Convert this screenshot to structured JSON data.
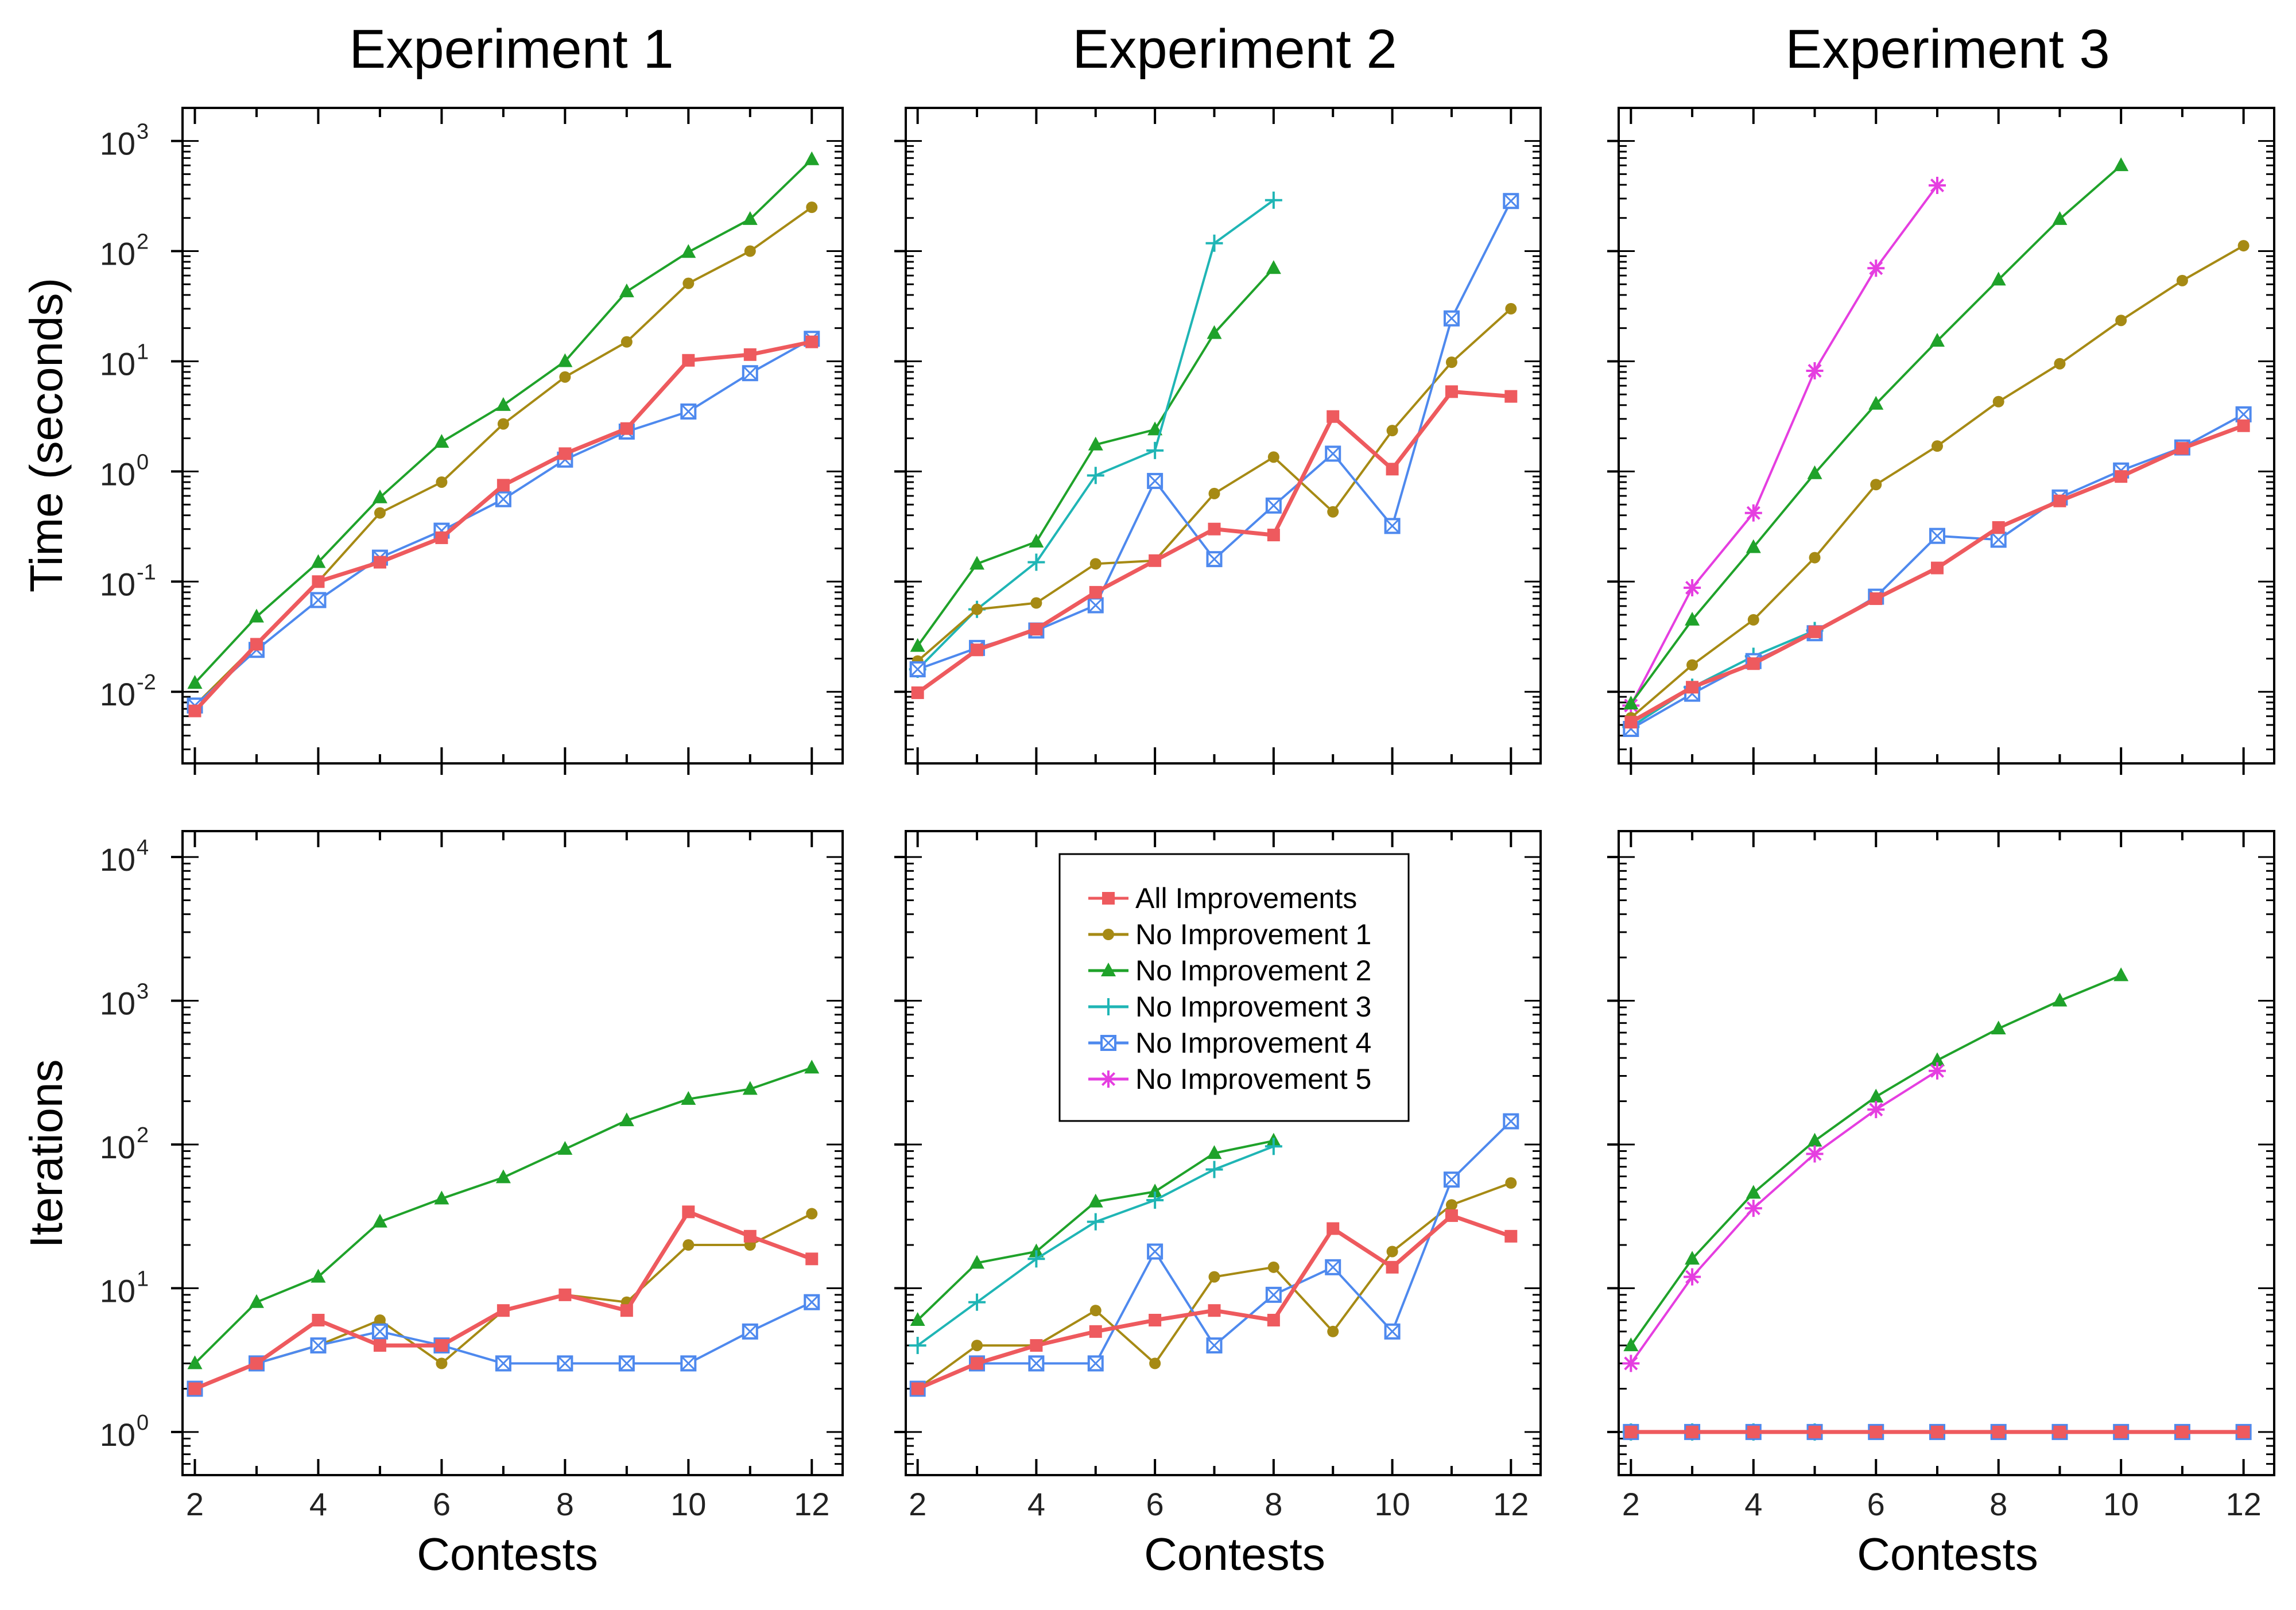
{
  "column_titles": [
    "Experiment 1",
    "Experiment 2",
    "Experiment 3"
  ],
  "row_labels": [
    "Time (seconds)",
    "Iterations"
  ],
  "x_label": "Contests",
  "x_ticks": [
    2,
    4,
    6,
    8,
    10,
    12
  ],
  "legend": {
    "location": "inside Experiment 2 iterations panel, top",
    "entries": [
      "All Improvements",
      "No Improvement 1",
      "No Improvement 2",
      "No Improvement 3",
      "No Improvement 4",
      "No Improvement 5"
    ]
  },
  "series_styles": [
    {
      "name": "All Improvements",
      "color": "#EE5A5E",
      "marker": "square"
    },
    {
      "name": "No Improvement 1",
      "color": "#A68A14",
      "marker": "circle"
    },
    {
      "name": "No Improvement 2",
      "color": "#1FA22A",
      "marker": "triangle"
    },
    {
      "name": "No Improvement 3",
      "color": "#1FB5B5",
      "marker": "plus"
    },
    {
      "name": "No Improvement 4",
      "color": "#4E89EE",
      "marker": "boxed-x"
    },
    {
      "name": "No Improvement 5",
      "color": "#E53EE0",
      "marker": "asterisk"
    }
  ],
  "chart_data": [
    {
      "type": "line",
      "title": "Experiment 1",
      "xlabel": "Contests",
      "ylabel": "Time (seconds)",
      "yscale": "log",
      "xlim": [
        1.8,
        12.5
      ],
      "ylim_log10": [
        -2.65,
        3.3
      ],
      "y_ticks": [
        {
          "base": "10",
          "exp": "-2"
        },
        {
          "base": "10",
          "exp": "-1"
        },
        {
          "base": "10",
          "exp": "0"
        },
        {
          "base": "10",
          "exp": "1"
        },
        {
          "base": "10",
          "exp": "2"
        },
        {
          "base": "10",
          "exp": "3"
        }
      ],
      "y_tick_values": [
        0.01,
        0.1,
        1,
        10,
        100,
        1000
      ],
      "series": [
        {
          "name": "No Improvement 2",
          "x": [
            2,
            3,
            4,
            5,
            6,
            7,
            8,
            9,
            10,
            11,
            12
          ],
          "values": [
            0.012,
            0.048,
            0.15,
            0.58,
            1.85,
            4.0,
            10,
            43,
            98,
            195,
            680
          ]
        },
        {
          "name": "No Improvement 1",
          "x": [
            2,
            3,
            4,
            5,
            6,
            7,
            8,
            9,
            10,
            11,
            12
          ],
          "values": [
            0.0075,
            0.027,
            0.1,
            0.42,
            0.8,
            2.7,
            7.2,
            15,
            51,
            100,
            250
          ]
        },
        {
          "name": "No Improvement 4",
          "x": [
            2,
            3,
            4,
            5,
            6,
            7,
            8,
            9,
            10,
            11,
            12
          ],
          "values": [
            0.0075,
            0.024,
            0.068,
            0.165,
            0.29,
            0.56,
            1.28,
            2.3,
            3.5,
            7.8,
            16
          ]
        },
        {
          "name": "All Improvements",
          "x": [
            2,
            3,
            4,
            5,
            6,
            7,
            8,
            9,
            10,
            11,
            12
          ],
          "values": [
            0.0067,
            0.027,
            0.1,
            0.15,
            0.25,
            0.75,
            1.45,
            2.45,
            10.2,
            11.5,
            15
          ]
        }
      ]
    },
    {
      "type": "line",
      "title": "Experiment 2",
      "xlabel": "Contests",
      "ylabel": "Time (seconds)",
      "yscale": "log",
      "xlim": [
        1.8,
        12.5
      ],
      "ylim_log10": [
        -2.65,
        3.3
      ],
      "y_tick_values": [
        0.01,
        0.1,
        1,
        10,
        100,
        1000
      ],
      "series": [
        {
          "name": "No Improvement 2",
          "x": [
            2,
            3,
            4,
            5,
            6,
            7,
            8
          ],
          "values": [
            0.026,
            0.145,
            0.23,
            1.75,
            2.4,
            18,
            70
          ]
        },
        {
          "name": "No Improvement 3",
          "x": [
            2,
            3,
            4,
            5,
            6,
            7,
            8
          ],
          "values": [
            0.016,
            0.056,
            0.15,
            0.92,
            1.55,
            118,
            290
          ]
        },
        {
          "name": "No Improvement 1",
          "x": [
            2,
            3,
            4,
            5,
            6,
            7,
            8,
            9,
            10,
            11,
            12
          ],
          "values": [
            0.019,
            0.056,
            0.064,
            0.145,
            0.155,
            0.63,
            1.35,
            0.43,
            2.35,
            9.8,
            30
          ]
        },
        {
          "name": "No Improvement 4",
          "x": [
            2,
            3,
            4,
            5,
            6,
            7,
            8,
            9,
            10,
            11,
            12
          ],
          "values": [
            0.016,
            0.025,
            0.036,
            0.061,
            0.82,
            0.16,
            0.49,
            1.45,
            0.32,
            24.5,
            285
          ]
        },
        {
          "name": "All Improvements",
          "x": [
            2,
            3,
            4,
            5,
            6,
            7,
            8,
            9,
            10,
            11,
            12
          ],
          "values": [
            0.0098,
            0.024,
            0.037,
            0.08,
            0.155,
            0.3,
            0.265,
            3.15,
            1.05,
            5.3,
            4.8
          ]
        }
      ]
    },
    {
      "type": "line",
      "title": "Experiment 3",
      "xlabel": "Contests",
      "ylabel": "Time (seconds)",
      "yscale": "log",
      "xlim": [
        1.8,
        12.5
      ],
      "ylim_log10": [
        -2.65,
        3.3
      ],
      "y_tick_values": [
        0.01,
        0.1,
        1,
        10,
        100,
        1000
      ],
      "series": [
        {
          "name": "No Improvement 5",
          "x": [
            2,
            3,
            4,
            5,
            6,
            7
          ],
          "values": [
            0.0075,
            0.088,
            0.42,
            8.2,
            70,
            395
          ]
        },
        {
          "name": "No Improvement 2",
          "x": [
            2,
            3,
            4,
            5,
            6,
            7,
            8,
            9,
            10
          ],
          "values": [
            0.0078,
            0.045,
            0.205,
            0.96,
            4.1,
            15.3,
            55,
            195,
            600
          ]
        },
        {
          "name": "No Improvement 1",
          "x": [
            2,
            3,
            4,
            5,
            6,
            7,
            8,
            9,
            10,
            11,
            12
          ],
          "values": [
            0.0058,
            0.0175,
            0.045,
            0.165,
            0.76,
            1.7,
            4.3,
            9.5,
            23.5,
            54,
            112
          ]
        },
        {
          "name": "No Improvement 3",
          "x": [
            2,
            3,
            4,
            5
          ],
          "values": [
            0.0048,
            0.011,
            0.021,
            0.036
          ]
        },
        {
          "name": "No Improvement 4",
          "x": [
            2,
            3,
            4,
            5,
            6,
            7,
            8,
            9,
            10,
            11,
            12
          ],
          "values": [
            0.0046,
            0.0096,
            0.019,
            0.034,
            0.073,
            0.26,
            0.24,
            0.58,
            1.02,
            1.65,
            3.3
          ]
        },
        {
          "name": "All Improvements",
          "x": [
            2,
            3,
            4,
            5,
            6,
            7,
            8,
            9,
            10,
            11,
            12
          ],
          "values": [
            0.0053,
            0.011,
            0.018,
            0.035,
            0.07,
            0.133,
            0.31,
            0.54,
            0.9,
            1.62,
            2.6
          ]
        }
      ]
    },
    {
      "type": "line",
      "title": "Experiment 1",
      "xlabel": "Contests",
      "ylabel": "Iterations",
      "yscale": "log",
      "xlim": [
        1.8,
        12.5
      ],
      "ylim_log10": [
        -0.3,
        4.18
      ],
      "y_ticks": [
        {
          "base": "10",
          "exp": "0"
        },
        {
          "base": "10",
          "exp": "1"
        },
        {
          "base": "10",
          "exp": "2"
        },
        {
          "base": "10",
          "exp": "3"
        },
        {
          "base": "10",
          "exp": "4"
        }
      ],
      "y_tick_values": [
        1,
        10,
        100,
        1000,
        10000
      ],
      "series": [
        {
          "name": "No Improvement 2",
          "x": [
            2,
            3,
            4,
            5,
            6,
            7,
            8,
            9,
            10,
            11,
            12
          ],
          "values": [
            3,
            8,
            12,
            29,
            42,
            59,
            93,
            147,
            207,
            243,
            342
          ]
        },
        {
          "name": "No Improvement 1",
          "x": [
            2,
            3,
            4,
            5,
            6,
            7,
            8,
            9,
            10,
            11,
            12
          ],
          "values": [
            2,
            3,
            4,
            6,
            3,
            7,
            9,
            8,
            20,
            20,
            33
          ]
        },
        {
          "name": "No Improvement 4",
          "x": [
            2,
            3,
            4,
            5,
            6,
            7,
            8,
            9,
            10,
            11,
            12
          ],
          "values": [
            2,
            3,
            4,
            5,
            4,
            3,
            3,
            3,
            3,
            5,
            8
          ]
        },
        {
          "name": "All Improvements",
          "x": [
            2,
            3,
            4,
            5,
            6,
            7,
            8,
            9,
            10,
            11,
            12
          ],
          "values": [
            2,
            3,
            6,
            4,
            4,
            7,
            9,
            7,
            34,
            23,
            16
          ]
        }
      ]
    },
    {
      "type": "line",
      "title": "Experiment 2",
      "xlabel": "Contests",
      "ylabel": "Iterations",
      "yscale": "log",
      "xlim": [
        1.8,
        12.5
      ],
      "ylim_log10": [
        -0.3,
        4.18
      ],
      "y_tick_values": [
        1,
        10,
        100,
        1000,
        10000
      ],
      "series": [
        {
          "name": "No Improvement 2",
          "x": [
            2,
            3,
            4,
            5,
            6,
            7,
            8
          ],
          "values": [
            6,
            15,
            18,
            40,
            47,
            87,
            106
          ]
        },
        {
          "name": "No Improvement 3",
          "x": [
            2,
            3,
            4,
            5,
            6,
            7,
            8
          ],
          "values": [
            4,
            8,
            16,
            29,
            41,
            67,
            97
          ]
        },
        {
          "name": "No Improvement 1",
          "x": [
            2,
            3,
            4,
            5,
            6,
            7,
            8,
            9,
            10,
            11,
            12
          ],
          "values": [
            2,
            4,
            4,
            7,
            3,
            12,
            14,
            5,
            18,
            38,
            54
          ]
        },
        {
          "name": "No Improvement 4",
          "x": [
            2,
            3,
            4,
            5,
            6,
            7,
            8,
            9,
            10,
            11,
            12
          ],
          "values": [
            2,
            3,
            3,
            3,
            18,
            4,
            9,
            14,
            5,
            57,
            145
          ]
        },
        {
          "name": "All Improvements",
          "x": [
            2,
            3,
            4,
            5,
            6,
            7,
            8,
            9,
            10,
            11,
            12
          ],
          "values": [
            2,
            3,
            4,
            5,
            6,
            7,
            6,
            26,
            14,
            32,
            23
          ]
        }
      ]
    },
    {
      "type": "line",
      "title": "Experiment 3",
      "xlabel": "Contests",
      "ylabel": "Iterations",
      "yscale": "log",
      "xlim": [
        1.8,
        12.5
      ],
      "ylim_log10": [
        -0.3,
        4.18
      ],
      "y_tick_values": [
        1,
        10,
        100,
        1000,
        10000
      ],
      "series": [
        {
          "name": "No Improvement 2",
          "x": [
            2,
            3,
            4,
            5,
            6,
            7,
            8,
            9,
            10
          ],
          "values": [
            4,
            16,
            46,
            106,
            215,
            385,
            640,
            1000,
            1500
          ]
        },
        {
          "name": "No Improvement 5",
          "x": [
            2,
            3,
            4,
            5,
            6,
            7
          ],
          "values": [
            3,
            12,
            36,
            86,
            175,
            325
          ]
        },
        {
          "name": "No Improvement 1",
          "x": [
            2,
            3,
            4,
            5,
            6,
            7,
            8,
            9,
            10,
            11,
            12
          ],
          "values": [
            1,
            1,
            1,
            1,
            1,
            1,
            1,
            1,
            1,
            1,
            1
          ]
        },
        {
          "name": "No Improvement 3",
          "x": [
            2,
            3,
            4,
            5
          ],
          "values": [
            1,
            1,
            1,
            1
          ]
        },
        {
          "name": "No Improvement 4",
          "x": [
            2,
            3,
            4,
            5,
            6,
            7,
            8,
            9,
            10,
            11,
            12
          ],
          "values": [
            1,
            1,
            1,
            1,
            1,
            1,
            1,
            1,
            1,
            1,
            1
          ]
        },
        {
          "name": "All Improvements",
          "x": [
            2,
            3,
            4,
            5,
            6,
            7,
            8,
            9,
            10,
            11,
            12
          ],
          "values": [
            1,
            1,
            1,
            1,
            1,
            1,
            1,
            1,
            1,
            1,
            1
          ]
        }
      ]
    }
  ]
}
